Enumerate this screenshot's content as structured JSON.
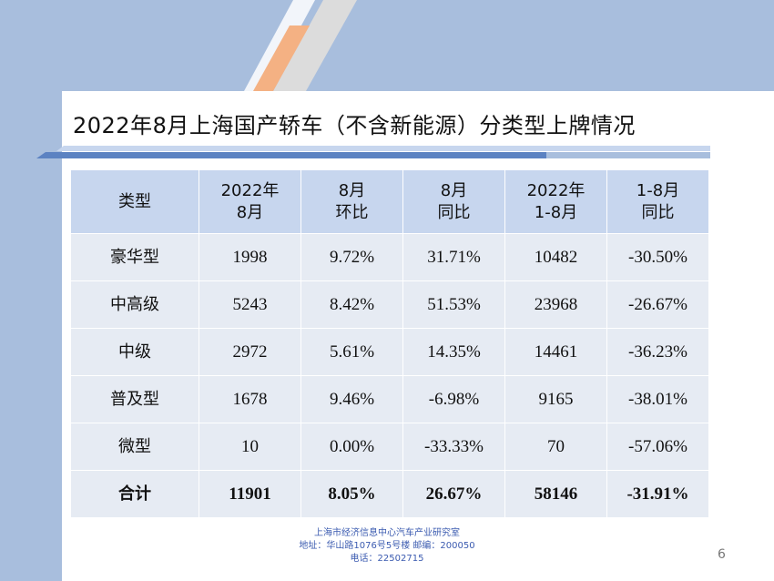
{
  "title": "2022年8月上海国产轿车（不含新能源）分类型上牌情况",
  "table": {
    "headers": [
      [
        "类型"
      ],
      [
        "2022年",
        "8月"
      ],
      [
        "8月",
        "环比"
      ],
      [
        "8月",
        "同比"
      ],
      [
        "2022年",
        "1-8月"
      ],
      [
        "1-8月",
        "同比"
      ]
    ],
    "rows": [
      [
        "豪华型",
        "1998",
        "9.72%",
        "31.71%",
        "10482",
        "-30.50%"
      ],
      [
        "中高级",
        "5243",
        "8.42%",
        "51.53%",
        "23968",
        "-26.67%"
      ],
      [
        "中级",
        "2972",
        "5.61%",
        "14.35%",
        "14461",
        "-36.23%"
      ],
      [
        "普及型",
        "1678",
        "9.46%",
        "-6.98%",
        "9165",
        "-38.01%"
      ],
      [
        "微型",
        "10",
        "0.00%",
        "-33.33%",
        "70",
        "-57.06%"
      ]
    ],
    "total": [
      "合计",
      "11901",
      "8.05%",
      "26.67%",
      "58146",
      "-31.91%"
    ]
  },
  "footer": {
    "org": "上海市经济信息中心汽车产业研究室",
    "address": "地址：华山路1076号5号楼    邮编：200050",
    "phone": "电话：22502715"
  },
  "page_number": "6",
  "colors": {
    "band": "#a8bedd",
    "header_fill": "#c7d6ee",
    "cell_fill": "#e6ebf3",
    "accent_orange": "#f4b183",
    "footer_text": "#3b5bb0"
  }
}
